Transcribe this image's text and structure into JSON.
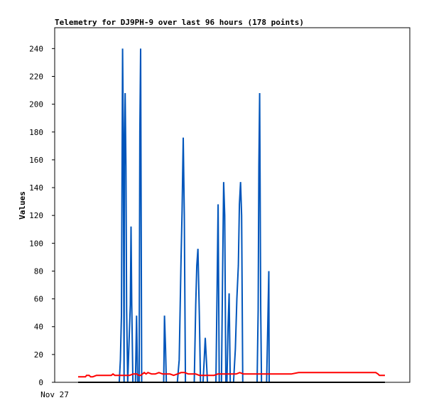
{
  "chart_data": {
    "type": "line",
    "title": "Telemetry for DJ9PH-9 over last 96 hours (178 points)",
    "xlabel": "",
    "ylabel": "Values",
    "x_tick_labels": [
      "Nov 27"
    ],
    "y_ticks": [
      0,
      20,
      40,
      60,
      80,
      100,
      120,
      140,
      160,
      180,
      200,
      220,
      240
    ],
    "ylim": [
      0,
      255
    ],
    "x_range_hours": [
      0,
      96
    ],
    "grid": false,
    "legend": "none",
    "series": [
      {
        "color": "#0055bb",
        "points": [
          [
            0,
            0
          ],
          [
            10.5,
            0
          ],
          [
            11.2,
            0
          ],
          [
            11.5,
            16
          ],
          [
            11.8,
            48
          ],
          [
            12.1,
            240
          ],
          [
            12.3,
            180
          ],
          [
            12.5,
            0
          ],
          [
            12.6,
            156
          ],
          [
            12.8,
            208
          ],
          [
            13.0,
            156
          ],
          [
            13.2,
            52
          ],
          [
            13.5,
            0
          ],
          [
            14.2,
            56
          ],
          [
            14.4,
            112
          ],
          [
            14.6,
            56
          ],
          [
            14.9,
            0
          ],
          [
            15.6,
            0
          ],
          [
            15.9,
            48
          ],
          [
            16.2,
            0
          ],
          [
            16.6,
            0
          ],
          [
            16.8,
            180
          ],
          [
            17.0,
            240
          ],
          [
            17.3,
            0
          ],
          [
            23.3,
            0
          ],
          [
            23.5,
            48
          ],
          [
            23.8,
            24
          ],
          [
            24.0,
            0
          ],
          [
            27.0,
            0
          ],
          [
            27.5,
            16
          ],
          [
            28.0,
            88
          ],
          [
            28.3,
            124
          ],
          [
            28.6,
            176
          ],
          [
            28.9,
            120
          ],
          [
            29.2,
            0
          ],
          [
            31.6,
            0
          ],
          [
            32.0,
            56
          ],
          [
            32.3,
            84
          ],
          [
            32.6,
            96
          ],
          [
            33.0,
            48
          ],
          [
            33.3,
            0
          ],
          [
            34.0,
            0
          ],
          [
            34.3,
            16
          ],
          [
            34.6,
            32
          ],
          [
            34.9,
            16
          ],
          [
            35.2,
            0
          ],
          [
            37.5,
            0
          ],
          [
            37.8,
            64
          ],
          [
            38.1,
            128
          ],
          [
            38.4,
            0
          ],
          [
            39.0,
            0
          ],
          [
            39.3,
            72
          ],
          [
            39.6,
            144
          ],
          [
            39.9,
            120
          ],
          [
            40.2,
            0
          ],
          [
            40.5,
            0
          ],
          [
            40.8,
            40
          ],
          [
            41.1,
            64
          ],
          [
            41.4,
            0
          ],
          [
            42.3,
            0
          ],
          [
            42.8,
            24
          ],
          [
            43.2,
            60
          ],
          [
            43.6,
            84
          ],
          [
            43.9,
            128
          ],
          [
            44.2,
            144
          ],
          [
            44.5,
            120
          ],
          [
            44.8,
            0
          ],
          [
            48.7,
            0
          ],
          [
            49.0,
            52
          ],
          [
            49.2,
            156
          ],
          [
            49.4,
            208
          ],
          [
            49.7,
            52
          ],
          [
            49.9,
            0
          ],
          [
            51.3,
            0
          ],
          [
            51.6,
            40
          ],
          [
            51.9,
            80
          ],
          [
            52.0,
            0
          ],
          [
            83.5,
            0
          ]
        ]
      },
      {
        "color": "#ff0000",
        "points": [
          [
            0,
            4
          ],
          [
            2,
            4
          ],
          [
            2.3,
            5
          ],
          [
            3,
            5
          ],
          [
            3.4,
            4
          ],
          [
            4,
            4
          ],
          [
            5,
            5
          ],
          [
            9,
            5
          ],
          [
            9.5,
            6
          ],
          [
            10,
            5
          ],
          [
            13,
            5
          ],
          [
            14,
            5
          ],
          [
            15,
            6
          ],
          [
            16,
            6
          ],
          [
            16.5,
            5
          ],
          [
            17,
            5
          ],
          [
            17.5,
            6
          ],
          [
            18,
            7
          ],
          [
            18.5,
            6
          ],
          [
            19,
            7
          ],
          [
            20,
            6
          ],
          [
            21,
            6
          ],
          [
            22,
            7
          ],
          [
            23,
            6
          ],
          [
            24,
            6
          ],
          [
            25,
            6
          ],
          [
            26,
            5
          ],
          [
            27,
            6
          ],
          [
            28,
            7
          ],
          [
            29,
            7
          ],
          [
            30,
            6
          ],
          [
            31,
            6
          ],
          [
            32,
            6
          ],
          [
            33,
            5
          ],
          [
            34,
            5
          ],
          [
            35,
            5
          ],
          [
            36,
            5
          ],
          [
            37,
            5
          ],
          [
            38,
            6
          ],
          [
            39,
            6
          ],
          [
            40,
            6
          ],
          [
            41,
            6
          ],
          [
            42,
            6
          ],
          [
            43,
            6
          ],
          [
            44,
            7
          ],
          [
            45,
            6
          ],
          [
            46,
            6
          ],
          [
            48,
            6
          ],
          [
            50,
            6
          ],
          [
            52,
            6
          ],
          [
            55,
            6
          ],
          [
            58,
            6
          ],
          [
            60,
            7
          ],
          [
            65,
            7
          ],
          [
            70,
            7
          ],
          [
            75,
            7
          ],
          [
            80,
            7
          ],
          [
            81,
            7
          ],
          [
            81.6,
            6
          ],
          [
            82,
            5
          ],
          [
            82.6,
            5
          ],
          [
            83.5,
            5
          ]
        ]
      },
      {
        "color": "#000000",
        "points": [
          [
            0,
            0
          ],
          [
            83.5,
            0
          ]
        ]
      }
    ]
  }
}
